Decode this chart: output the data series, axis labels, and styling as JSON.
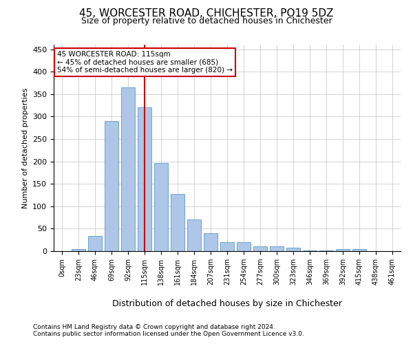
{
  "title1": "45, WORCESTER ROAD, CHICHESTER, PO19 5DZ",
  "title2": "Size of property relative to detached houses in Chichester",
  "xlabel": "Distribution of detached houses by size in Chichester",
  "ylabel": "Number of detached properties",
  "bar_labels": [
    "0sqm",
    "23sqm",
    "46sqm",
    "69sqm",
    "92sqm",
    "115sqm",
    "138sqm",
    "161sqm",
    "184sqm",
    "207sqm",
    "231sqm",
    "254sqm",
    "277sqm",
    "300sqm",
    "323sqm",
    "346sqm",
    "369sqm",
    "392sqm",
    "415sqm",
    "438sqm",
    "461sqm"
  ],
  "bar_values": [
    0,
    5,
    33,
    290,
    365,
    320,
    197,
    127,
    70,
    40,
    20,
    20,
    10,
    10,
    7,
    2,
    2,
    5,
    5,
    0,
    0
  ],
  "bar_color": "#aec6e8",
  "bar_edge_color": "#5a9ac8",
  "vline_x": 5,
  "vline_color": "#cc0000",
  "annotation_line1": "45 WORCESTER ROAD: 115sqm",
  "annotation_line2": "← 45% of detached houses are smaller (685)",
  "annotation_line3": "54% of semi-detached houses are larger (820) →",
  "annotation_box_color": "#ffffff",
  "annotation_box_edge": "#cc0000",
  "ylim": [
    0,
    460
  ],
  "yticks": [
    0,
    50,
    100,
    150,
    200,
    250,
    300,
    350,
    400,
    450
  ],
  "footnote1": "Contains HM Land Registry data © Crown copyright and database right 2024.",
  "footnote2": "Contains public sector information licensed under the Open Government Licence v3.0.",
  "background_color": "#ffffff",
  "grid_color": "#cccccc",
  "title1_fontsize": 11,
  "title2_fontsize": 9,
  "ylabel_fontsize": 8,
  "xlabel_fontsize": 9,
  "tick_fontsize": 7,
  "annot_fontsize": 7.5,
  "footnote_fontsize": 6.5
}
